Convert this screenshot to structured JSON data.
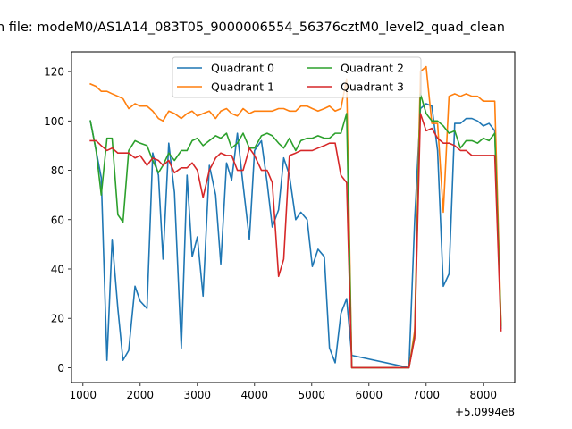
{
  "chart_data": {
    "type": "line",
    "title": "n file: modeM0/AS1A14_083T05_9000006554_56376cztM0_level2_quad_clean",
    "xlabel": "",
    "ylabel": "",
    "x_offset_label": "+5.0994e8",
    "xlim": [
      800,
      8550
    ],
    "ylim": [
      -6,
      128
    ],
    "xticks": [
      1000,
      2000,
      3000,
      4000,
      5000,
      6000,
      7000,
      8000
    ],
    "xtick_labels": [
      "1000",
      "2000",
      "3000",
      "4000",
      "5000",
      "6000",
      "7000",
      "8000"
    ],
    "yticks": [
      0,
      20,
      40,
      60,
      80,
      100,
      120
    ],
    "ytick_labels": [
      "0",
      "20",
      "40",
      "60",
      "80",
      "100",
      "120"
    ],
    "grid": false,
    "legend_placement": "top-center",
    "legend_columns": 2,
    "x": [
      1130,
      1230,
      1320,
      1420,
      1510,
      1610,
      1700,
      1800,
      1910,
      2000,
      2120,
      2220,
      2320,
      2400,
      2500,
      2600,
      2720,
      2820,
      2910,
      3000,
      3100,
      3210,
      3320,
      3410,
      3510,
      3600,
      3700,
      3800,
      3910,
      4000,
      4120,
      4220,
      4310,
      4420,
      4510,
      4610,
      4720,
      4810,
      4920,
      5010,
      5110,
      5220,
      5310,
      5410,
      5510,
      5610,
      5700,
      6700,
      6800,
      6900,
      7000,
      7100,
      7200,
      7300,
      7400,
      7500,
      7600,
      7700,
      7800,
      7900,
      8000,
      8100,
      8200,
      8310
    ],
    "series": [
      {
        "name": "Quadrant 0",
        "color": "#1f77b4",
        "values": [
          100,
          88,
          77,
          3,
          52,
          24,
          3,
          7,
          33,
          27,
          24,
          87,
          78,
          44,
          91,
          71,
          8,
          78,
          45,
          53,
          29,
          82,
          70,
          42,
          83,
          76,
          95,
          74,
          52,
          88,
          92,
          75,
          57,
          64,
          85,
          78,
          60,
          63,
          60,
          41,
          48,
          45,
          8,
          2,
          22,
          28,
          5,
          0,
          60,
          105,
          107,
          106,
          88,
          33,
          38,
          99,
          99,
          101,
          101,
          100,
          98,
          99,
          96,
          16
        ]
      },
      {
        "name": "Quadrant 1",
        "color": "#ff7f0e",
        "values": [
          115,
          114,
          112,
          112,
          111,
          110,
          109,
          105,
          107,
          106,
          106,
          104,
          101,
          100,
          104,
          103,
          101,
          103,
          104,
          102,
          103,
          104,
          101,
          104,
          105,
          103,
          102,
          105,
          103,
          104,
          104,
          104,
          104,
          105,
          105,
          104,
          104,
          106,
          106,
          105,
          104,
          105,
          106,
          104,
          105,
          117,
          0,
          0,
          15,
          120,
          122,
          99,
          99,
          63,
          110,
          111,
          110,
          111,
          110,
          110,
          108,
          108,
          108,
          18
        ]
      },
      {
        "name": "Quadrant 2",
        "color": "#2ca02c",
        "values": [
          100,
          88,
          70,
          93,
          93,
          62,
          59,
          88,
          92,
          91,
          90,
          84,
          79,
          82,
          87,
          84,
          88,
          88,
          92,
          93,
          90,
          92,
          94,
          93,
          95,
          89,
          91,
          95,
          89,
          89,
          94,
          95,
          94,
          91,
          89,
          93,
          88,
          92,
          93,
          93,
          94,
          93,
          93,
          95,
          95,
          103,
          0,
          0,
          13,
          111,
          103,
          100,
          100,
          98,
          95,
          96,
          89,
          92,
          92,
          91,
          93,
          92,
          95,
          17
        ]
      },
      {
        "name": "Quadrant 3",
        "color": "#d62728",
        "values": [
          92,
          92,
          90,
          88,
          89,
          87,
          87,
          87,
          85,
          86,
          82,
          85,
          84,
          82,
          84,
          79,
          81,
          81,
          83,
          80,
          69,
          80,
          85,
          87,
          86,
          86,
          80,
          80,
          89,
          86,
          80,
          80,
          75,
          37,
          44,
          86,
          87,
          88,
          88,
          88,
          89,
          90,
          91,
          91,
          78,
          75,
          0,
          0,
          12,
          103,
          96,
          97,
          93,
          91,
          91,
          90,
          88,
          88,
          86,
          86,
          86,
          86,
          86,
          15
        ]
      }
    ]
  }
}
